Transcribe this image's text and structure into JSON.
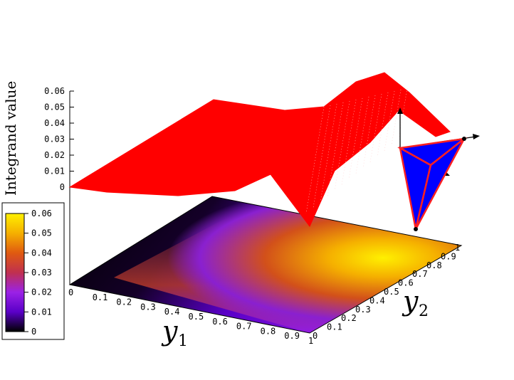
{
  "chart_data": {
    "type": "surface3d",
    "zlabel": "Integrand value",
    "xlabel": {
      "var": "y",
      "sub": "1"
    },
    "ylabel": {
      "var": "y",
      "sub": "2"
    },
    "x_range": [
      0,
      1
    ],
    "y_range": [
      0,
      1
    ],
    "z_range": [
      0,
      0.06
    ],
    "z_ticks": [
      "0",
      "0.01",
      "0.02",
      "0.03",
      "0.04",
      "0.05",
      "0.06"
    ],
    "x_ticks": [
      "0",
      "0.1",
      "0.2",
      "0.3",
      "0.4",
      "0.5",
      "0.6",
      "0.7",
      "0.8",
      "0.9",
      "1"
    ],
    "y_ticks": [
      "0",
      "0.1",
      "0.2",
      "0.3",
      "0.4",
      "0.5",
      "0.6",
      "0.7",
      "0.8",
      "0.9",
      "1"
    ],
    "colorbar": {
      "ticks": [
        "0",
        "0.01",
        "0.02",
        "0.03",
        "0.04",
        "0.05",
        "0.06"
      ],
      "palette": [
        "#000000",
        "#5a00c8",
        "#9b22e6",
        "#c0304f",
        "#e05a10",
        "#f5b000",
        "#fff000"
      ]
    },
    "surface_color": "#ff0000",
    "inset_color": "#0000ff",
    "inset_edge_color": "#ff2020",
    "surface_samples": [
      {
        "y1": 0.0,
        "y2": 0.0,
        "z": 0.0
      },
      {
        "y1": 0.5,
        "y2": 0.0,
        "z": 0.035
      },
      {
        "y1": 1.0,
        "y2": 0.0,
        "z": 0.032
      },
      {
        "y1": 0.0,
        "y2": 0.5,
        "z": 0.004
      },
      {
        "y1": 0.9,
        "y2": 0.5,
        "z": 0.06
      },
      {
        "y1": 1.0,
        "y2": 1.0,
        "z": 0.028
      },
      {
        "y1": 0.0,
        "y2": 1.0,
        "z": 0.0
      },
      {
        "y1": 0.55,
        "y2": 0.95,
        "z": 0.0
      }
    ]
  }
}
